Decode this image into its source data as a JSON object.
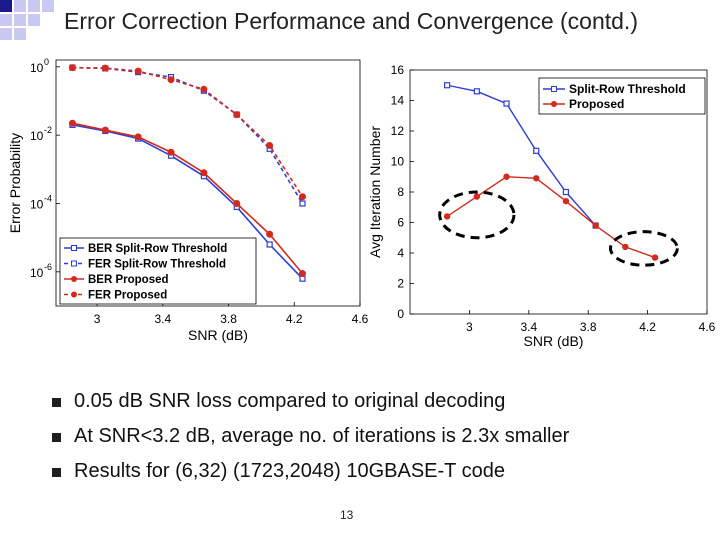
{
  "slide": {
    "title": "Error Correction Performance and Convergence (contd.)",
    "bullets": [
      "0.05 dB SNR loss compared to original decoding",
      "At SNR<3.2 dB, average no. of iterations is 2.3x smaller",
      "Results for (6,32) (1723,2048) 10GBASE-T code"
    ],
    "page_number": "13"
  },
  "colors": {
    "blue": "#2a3fd6",
    "red": "#d42a1e",
    "logo": "#c8c8f0"
  },
  "chart_data": [
    {
      "type": "line",
      "xlabel": "SNR (dB)",
      "ylabel": "Error Probability",
      "yscale": "log",
      "xlim": [
        2.75,
        4.6
      ],
      "ylim_exp": [
        -7,
        0.2
      ],
      "xticks": [
        3,
        3.4,
        3.8,
        4.2,
        4.6
      ],
      "xtick_labels": [
        "3",
        "3.4",
        "3.8",
        "4.2",
        "4.6"
      ],
      "yticks_exp": [
        0,
        -2,
        -4,
        -6
      ],
      "ytick_labels": [
        "10",
        "10",
        "10",
        "10"
      ],
      "ytick_sup": [
        "0",
        "-2",
        "-4",
        "-6"
      ],
      "legend_position": "lower-left",
      "grid": false,
      "series": [
        {
          "name": "BER Split-Row Threshold",
          "color": "#2a3fd6",
          "style": "solid",
          "marker": "square",
          "x": [
            2.85,
            3.05,
            3.25,
            3.45,
            3.65,
            3.85,
            4.05,
            4.25
          ],
          "y": [
            0.02,
            0.0133,
            0.00794,
            0.00251,
            0.000631,
            7.94e-05,
            6.31e-06,
            6.31e-07
          ]
        },
        {
          "name": "FER Split-Row Threshold",
          "color": "#2a3fd6",
          "style": "dashed",
          "marker": "square",
          "x": [
            2.85,
            3.05,
            3.25,
            3.45,
            3.65,
            3.85,
            4.05,
            4.25
          ],
          "y": [
            0.95,
            0.9,
            0.7,
            0.5,
            0.2,
            0.04,
            0.004,
            0.0001
          ]
        },
        {
          "name": "BER Proposed",
          "color": "#d42a1e",
          "style": "solid",
          "marker": "circle",
          "x": [
            2.85,
            3.05,
            3.25,
            3.45,
            3.65,
            3.85,
            4.05,
            4.25
          ],
          "y": [
            0.0224,
            0.0141,
            0.00891,
            0.00316,
            0.000794,
            0.0001,
            1.26e-05,
            8.91e-07
          ]
        },
        {
          "name": "FER Proposed",
          "color": "#d42a1e",
          "style": "dashed",
          "marker": "circle",
          "x": [
            2.85,
            3.05,
            3.25,
            3.45,
            3.65,
            3.85,
            4.05,
            4.25
          ],
          "y": [
            0.95,
            0.92,
            0.75,
            0.42,
            0.22,
            0.04,
            0.005,
            0.000158
          ]
        }
      ]
    },
    {
      "type": "line",
      "xlabel": "SNR (dB)",
      "ylabel": "Avg Iteration Number",
      "xlim": [
        2.6,
        4.6
      ],
      "ylim": [
        0,
        16
      ],
      "xticks": [
        3,
        3.4,
        3.8,
        4.2,
        4.6
      ],
      "xtick_labels": [
        "3",
        "3.4",
        "3.8",
        "4.2",
        "4.6"
      ],
      "yticks": [
        0,
        2,
        4,
        6,
        8,
        10,
        12,
        14,
        16
      ],
      "ytick_labels": [
        "0",
        "2",
        "4",
        "6",
        "8",
        "10",
        "12",
        "14",
        "16"
      ],
      "legend_position": "top-right",
      "grid": false,
      "series": [
        {
          "name": "Split-Row Threshold",
          "color": "#2a3fd6",
          "marker": "square",
          "x": [
            2.85,
            3.05,
            3.25,
            3.45,
            3.65,
            3.85
          ],
          "y": [
            15.0,
            14.6,
            13.8,
            10.7,
            8.0,
            5.8
          ]
        },
        {
          "name": "Proposed",
          "color": "#d42a1e",
          "marker": "circle",
          "x": [
            2.85,
            3.05,
            3.25,
            3.45,
            3.65,
            3.85,
            4.05,
            4.25
          ],
          "y": [
            6.4,
            7.7,
            9.0,
            8.9,
            7.4,
            5.8,
            4.4,
            3.7
          ]
        }
      ],
      "annotations": [
        {
          "type": "dashed-ellipse",
          "x_range": [
            2.8,
            3.3
          ],
          "y_range": [
            5.0,
            8.0
          ]
        },
        {
          "type": "dashed-ellipse",
          "x_range": [
            3.95,
            4.4
          ],
          "y_range": [
            3.2,
            5.4
          ]
        }
      ]
    }
  ]
}
